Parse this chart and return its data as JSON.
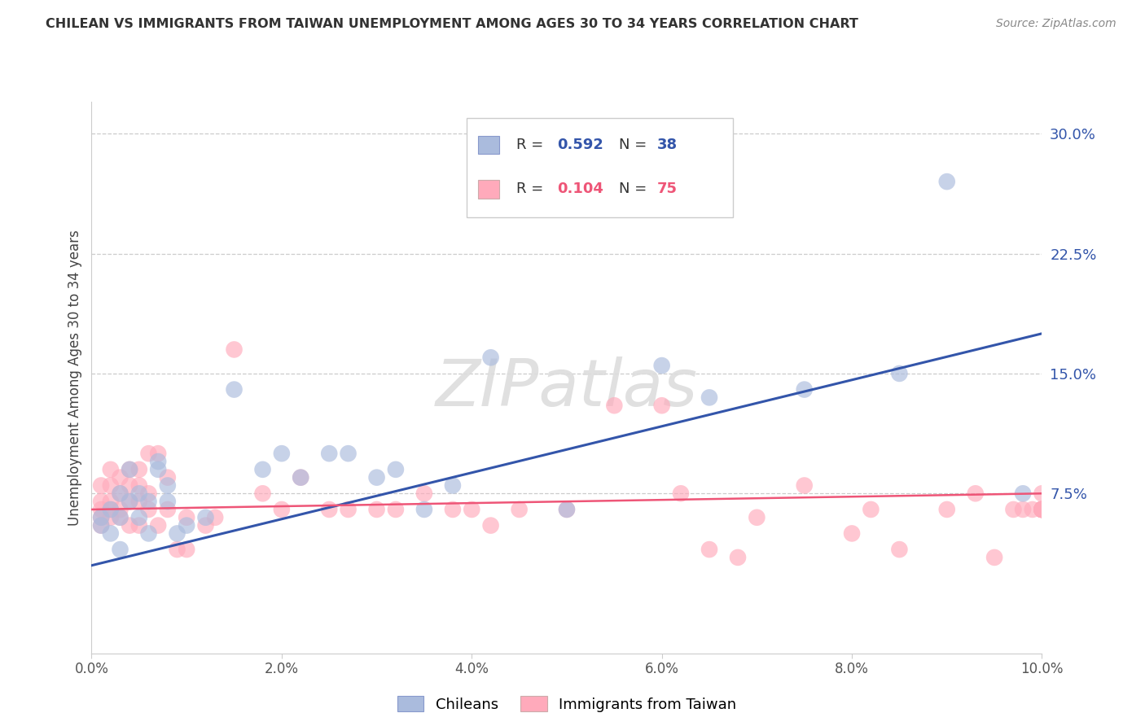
{
  "title": "CHILEAN VS IMMIGRANTS FROM TAIWAN UNEMPLOYMENT AMONG AGES 30 TO 34 YEARS CORRELATION CHART",
  "source": "Source: ZipAtlas.com",
  "ylabel": "Unemployment Among Ages 30 to 34 years",
  "xlim": [
    0.0,
    0.1
  ],
  "ylim": [
    -0.025,
    0.32
  ],
  "yticks": [
    0.075,
    0.15,
    0.225,
    0.3
  ],
  "ytick_labels": [
    "7.5%",
    "15.0%",
    "22.5%",
    "30.0%"
  ],
  "xticks": [
    0.0,
    0.02,
    0.04,
    0.06,
    0.08,
    0.1
  ],
  "xtick_labels": [
    "0.0%",
    "2.0%",
    "4.0%",
    "6.0%",
    "8.0%",
    "10.0%"
  ],
  "grid_color": "#cccccc",
  "background_color": "#ffffff",
  "watermark": "ZIPatlas",
  "blue_color": "#aabbdd",
  "pink_color": "#ffaabb",
  "blue_line_color": "#3355aa",
  "pink_line_color": "#ee5577",
  "blue_r": "0.592",
  "blue_n": "38",
  "pink_r": "0.104",
  "pink_n": "75",
  "blue_line_x0": 0.0,
  "blue_line_y0": 0.03,
  "blue_line_x1": 0.1,
  "blue_line_y1": 0.175,
  "pink_line_x0": 0.0,
  "pink_line_y0": 0.065,
  "pink_line_x1": 0.1,
  "pink_line_y1": 0.075,
  "chilean_x": [
    0.001,
    0.001,
    0.002,
    0.002,
    0.003,
    0.003,
    0.003,
    0.004,
    0.004,
    0.005,
    0.005,
    0.006,
    0.006,
    0.007,
    0.007,
    0.008,
    0.008,
    0.009,
    0.01,
    0.012,
    0.015,
    0.018,
    0.02,
    0.022,
    0.025,
    0.027,
    0.03,
    0.032,
    0.035,
    0.038,
    0.042,
    0.05,
    0.06,
    0.065,
    0.075,
    0.085,
    0.09,
    0.098
  ],
  "chilean_y": [
    0.06,
    0.055,
    0.065,
    0.05,
    0.06,
    0.075,
    0.04,
    0.07,
    0.09,
    0.06,
    0.075,
    0.05,
    0.07,
    0.09,
    0.095,
    0.07,
    0.08,
    0.05,
    0.055,
    0.06,
    0.14,
    0.09,
    0.1,
    0.085,
    0.1,
    0.1,
    0.085,
    0.09,
    0.065,
    0.08,
    0.16,
    0.065,
    0.155,
    0.135,
    0.14,
    0.15,
    0.27,
    0.075
  ],
  "taiwan_x": [
    0.001,
    0.001,
    0.001,
    0.001,
    0.001,
    0.002,
    0.002,
    0.002,
    0.002,
    0.002,
    0.003,
    0.003,
    0.003,
    0.003,
    0.004,
    0.004,
    0.004,
    0.004,
    0.005,
    0.005,
    0.005,
    0.005,
    0.006,
    0.006,
    0.006,
    0.007,
    0.007,
    0.008,
    0.008,
    0.009,
    0.01,
    0.01,
    0.012,
    0.013,
    0.015,
    0.018,
    0.02,
    0.022,
    0.025,
    0.027,
    0.03,
    0.032,
    0.035,
    0.038,
    0.04,
    0.042,
    0.045,
    0.05,
    0.055,
    0.06,
    0.062,
    0.065,
    0.068,
    0.07,
    0.075,
    0.08,
    0.082,
    0.085,
    0.09,
    0.093,
    0.095,
    0.097,
    0.098,
    0.099,
    0.1,
    0.1,
    0.1,
    0.1,
    0.1,
    0.1,
    0.1,
    0.1,
    0.1,
    0.1,
    0.1
  ],
  "taiwan_y": [
    0.07,
    0.065,
    0.06,
    0.055,
    0.08,
    0.06,
    0.07,
    0.08,
    0.065,
    0.09,
    0.075,
    0.085,
    0.06,
    0.065,
    0.07,
    0.08,
    0.09,
    0.055,
    0.07,
    0.08,
    0.09,
    0.055,
    0.1,
    0.065,
    0.075,
    0.055,
    0.1,
    0.085,
    0.065,
    0.04,
    0.06,
    0.04,
    0.055,
    0.06,
    0.165,
    0.075,
    0.065,
    0.085,
    0.065,
    0.065,
    0.065,
    0.065,
    0.075,
    0.065,
    0.065,
    0.055,
    0.065,
    0.065,
    0.13,
    0.13,
    0.075,
    0.04,
    0.035,
    0.06,
    0.08,
    0.05,
    0.065,
    0.04,
    0.065,
    0.075,
    0.035,
    0.065,
    0.065,
    0.065,
    0.065,
    0.065,
    0.065,
    0.065,
    0.065,
    0.065,
    0.065,
    0.065,
    0.065,
    0.065,
    0.075
  ]
}
